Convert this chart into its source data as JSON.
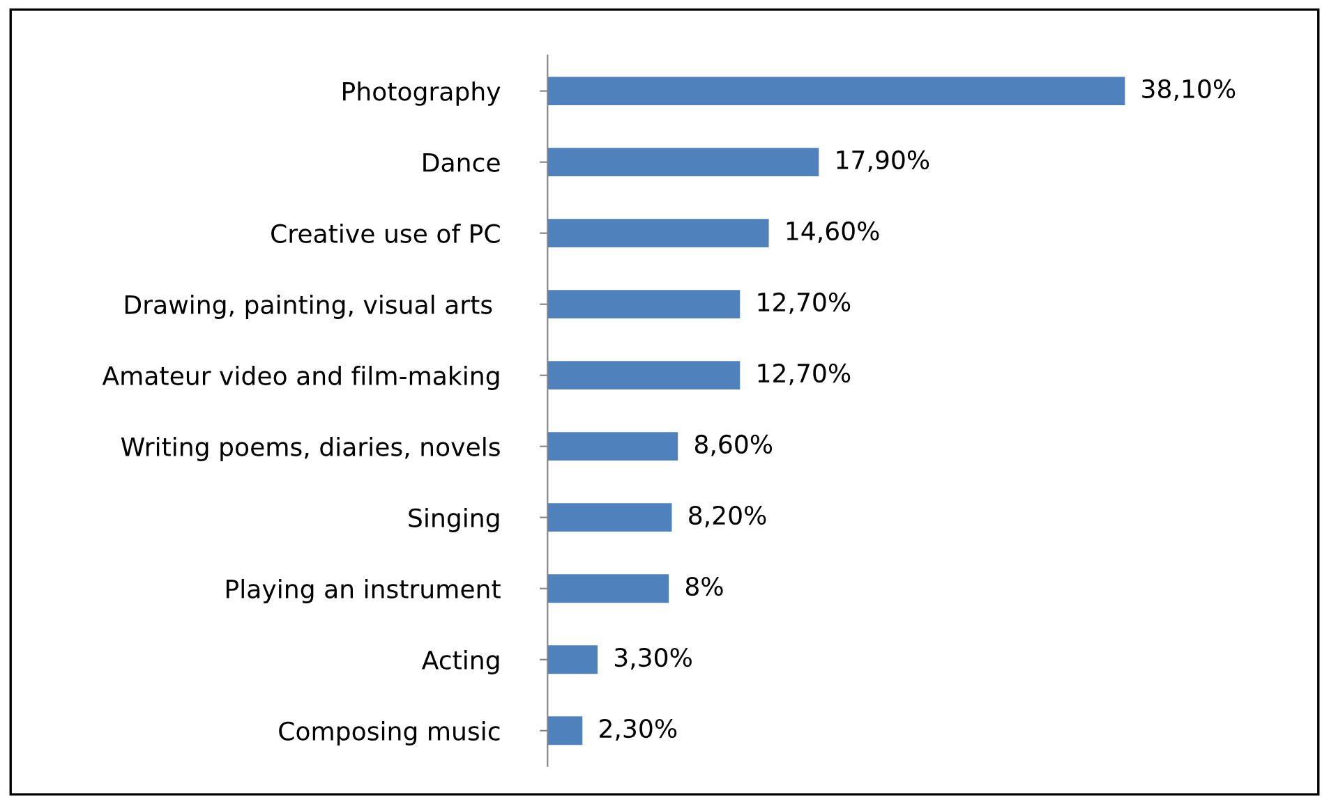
{
  "chart_data": {
    "type": "bar",
    "orientation": "horizontal",
    "categories": [
      "Photography",
      "Dance",
      "Creative use of PC",
      "Drawing, painting, visual arts ",
      "Amateur video and film-making",
      "Writing poems, diaries, novels",
      "Singing",
      "Playing an instrument",
      "Acting",
      "Composing music"
    ],
    "values": [
      38.1,
      17.9,
      14.6,
      12.7,
      12.7,
      8.6,
      8.2,
      8,
      3.3,
      2.3
    ],
    "value_labels": [
      "38,10%",
      "17,90%",
      "14,60%",
      "12,70%",
      "12,70%",
      "8,60%",
      "8,20%",
      "8%",
      "3,30%",
      "2,30%"
    ],
    "color": "#4f81bd",
    "grid": false,
    "legend": false
  }
}
